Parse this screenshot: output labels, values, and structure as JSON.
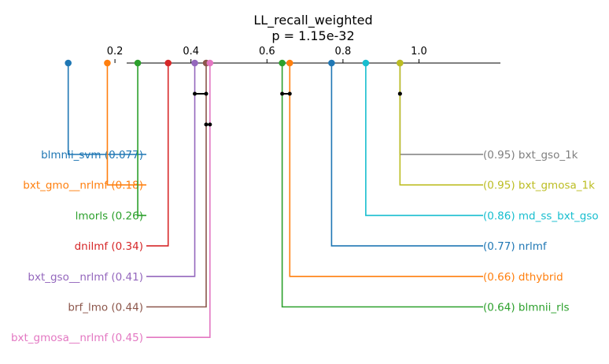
{
  "chart_data": {
    "type": "critical-difference",
    "title": "LL_recall_weighted",
    "subtitle": "p = 1.15e-32",
    "axis": {
      "range": [
        0.077,
        1.0
      ],
      "ticks": [
        0.2,
        0.4,
        0.6,
        0.8,
        1.0
      ],
      "tick_labels": [
        "0.2",
        "0.4",
        "0.6",
        "0.8",
        "1.0"
      ]
    },
    "left_entries": [
      {
        "name": "blmnii_svm",
        "value": 0.077,
        "label": "blmnii_svm (0.077)",
        "color": "#1f77b4"
      },
      {
        "name": "bxt_gmo__nrlmf",
        "value": 0.18,
        "label": "bxt_gmo__nrlmf (0.18)",
        "color": "#ff7f0e"
      },
      {
        "name": "lmorls",
        "value": 0.26,
        "label": "lmorls (0.26)",
        "color": "#2ca02c"
      },
      {
        "name": "dnilmf",
        "value": 0.34,
        "label": "dnilmf (0.34)",
        "color": "#d62728"
      },
      {
        "name": "bxt_gso__nrlmf",
        "value": 0.41,
        "label": "bxt_gso__nrlmf (0.41)",
        "color": "#9467bd"
      },
      {
        "name": "brf_lmo",
        "value": 0.44,
        "label": "brf_lmo (0.44)",
        "color": "#8c564b"
      },
      {
        "name": "bxt_gmosa__nrlmf",
        "value": 0.45,
        "label": "bxt_gmosa__nrlmf (0.45)",
        "color": "#e377c2"
      }
    ],
    "right_entries": [
      {
        "name": "bxt_gso_1k",
        "value": 0.95,
        "label": "(0.95) bxt_gso_1k",
        "color": "#7f7f7f"
      },
      {
        "name": "bxt_gmosa_1k",
        "value": 0.95,
        "label": "(0.95) bxt_gmosa_1k",
        "color": "#bcbd22"
      },
      {
        "name": "md_ss_bxt_gso",
        "value": 0.86,
        "label": "(0.86) md_ss_bxt_gso",
        "color": "#17becf"
      },
      {
        "name": "nrlmf",
        "value": 0.77,
        "label": "(0.77) nrlmf",
        "color": "#1f77b4"
      },
      {
        "name": "dthybrid",
        "value": 0.66,
        "label": "(0.66) dthybrid",
        "color": "#ff7f0e"
      },
      {
        "name": "blmnii_rls",
        "value": 0.64,
        "label": "(0.64) blmnii_rls",
        "color": "#2ca02c"
      }
    ],
    "cliques": [
      [
        0.41,
        0.44
      ],
      [
        0.64,
        0.66
      ],
      [
        0.95,
        0.95
      ],
      [
        0.44,
        0.45
      ]
    ]
  }
}
